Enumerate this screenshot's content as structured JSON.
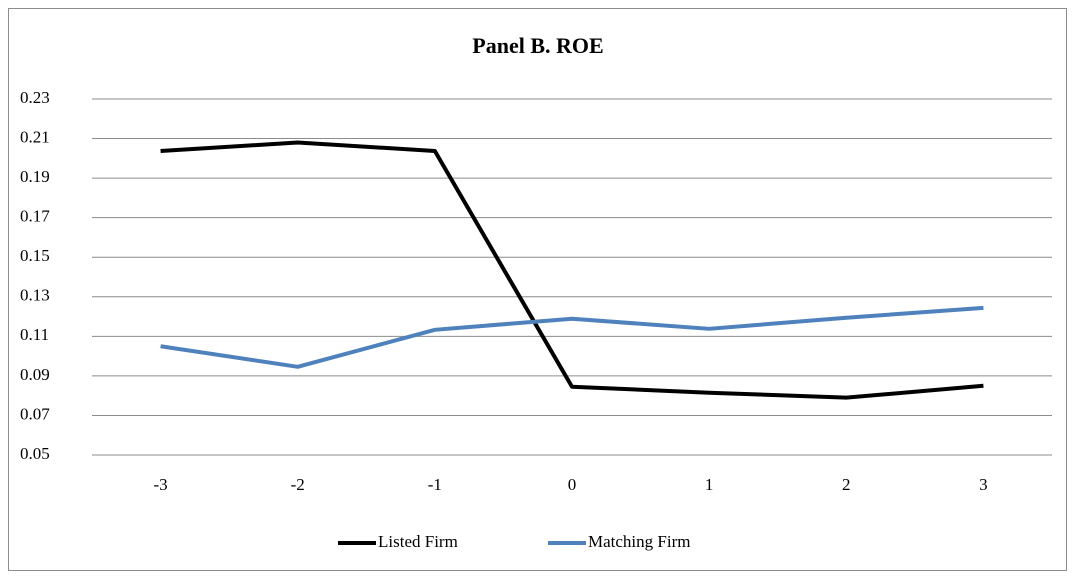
{
  "chart_data": {
    "type": "line",
    "title": "Panel B. ROE",
    "categories": [
      "-3",
      "-2",
      "-1",
      "0",
      "1",
      "2",
      "3"
    ],
    "series": [
      {
        "name": "Listed Firm",
        "color": "#000000",
        "values": [
          0.2037,
          0.208,
          0.2037,
          0.0845,
          0.0815,
          0.079,
          0.085
        ]
      },
      {
        "name": "Matching Firm",
        "color": "#4f81bd",
        "values": [
          0.105,
          0.0946,
          0.1133,
          0.1189,
          0.1138,
          0.1194,
          0.1244
        ]
      }
    ],
    "ylim": [
      0.05,
      0.23
    ],
    "yticks": [
      0.05,
      0.07,
      0.09,
      0.11,
      0.13,
      0.15,
      0.17,
      0.19,
      0.21,
      0.23
    ],
    "grid": true,
    "legend": "bottom"
  }
}
